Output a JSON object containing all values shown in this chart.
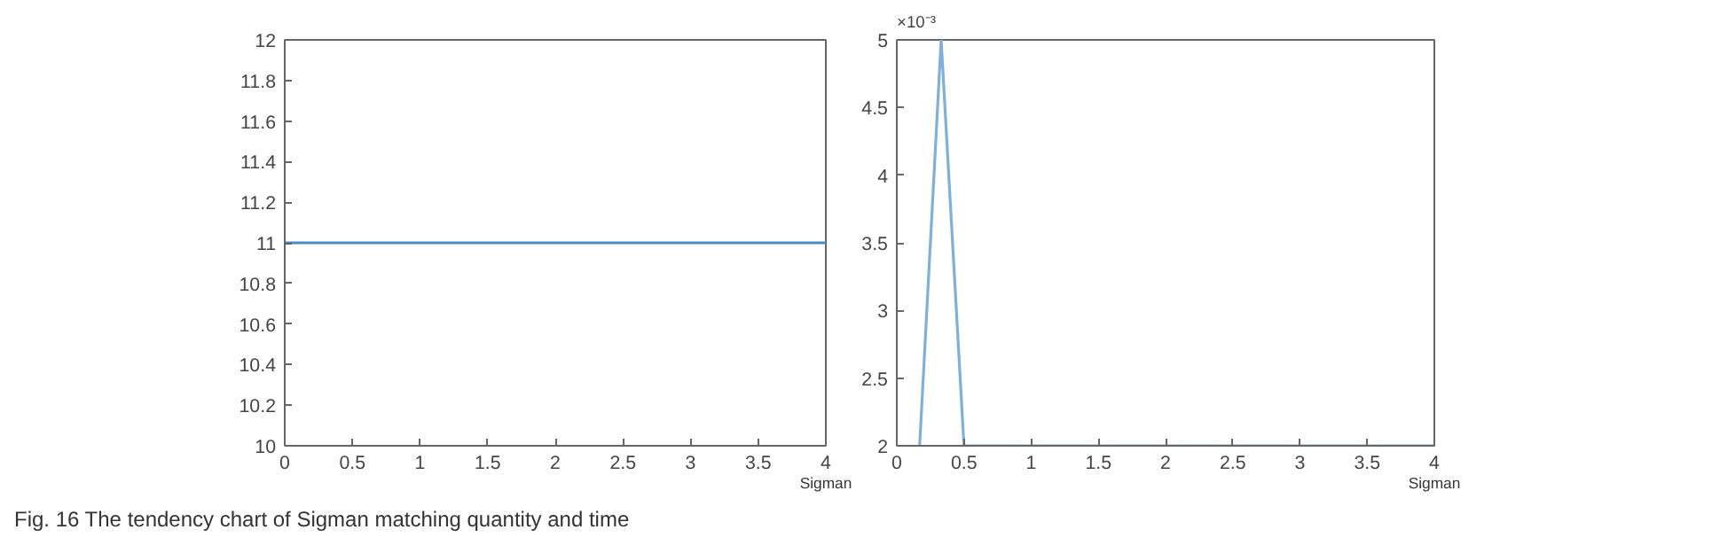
{
  "chart_data": [
    {
      "type": "line",
      "xlabel": "Sigman",
      "series": [
        {
          "color": "#4a8cbf",
          "x": [
            0,
            4
          ],
          "values": [
            11,
            11
          ]
        }
      ],
      "xlim": [
        0,
        4
      ],
      "ylim": [
        10,
        12
      ],
      "xticks": [
        0,
        0.5,
        1,
        1.5,
        2,
        2.5,
        3,
        3.5,
        4
      ],
      "yticks": [
        10,
        10.2,
        10.4,
        10.6,
        10.8,
        11,
        11.2,
        11.4,
        11.6,
        11.8,
        12
      ],
      "grid": false,
      "marker": "none",
      "line_style": "solid",
      "annotations": [
        "Fig. 16 The tendency chart of Sigman matching quantity and time"
      ]
    },
    {
      "type": "line",
      "xlabel": "Sigman",
      "series": [
        {
          "color": "#7fb0d8",
          "x": [
            0.17,
            0.33,
            0.5,
            4
          ],
          "values": [
            2,
            5,
            2,
            2
          ]
        }
      ],
      "xlim": [
        0,
        4
      ],
      "ylim": [
        2,
        5
      ],
      "xticks": [
        0,
        0.5,
        1,
        1.5,
        2,
        2.5,
        3,
        3.5,
        4
      ],
      "yticks": [
        2,
        2.5,
        3,
        3.5,
        4,
        4.5,
        5
      ],
      "grid": false,
      "marker": "none",
      "line_style": "solid",
      "annotations": [
        "×10⁻³"
      ]
    }
  ]
}
